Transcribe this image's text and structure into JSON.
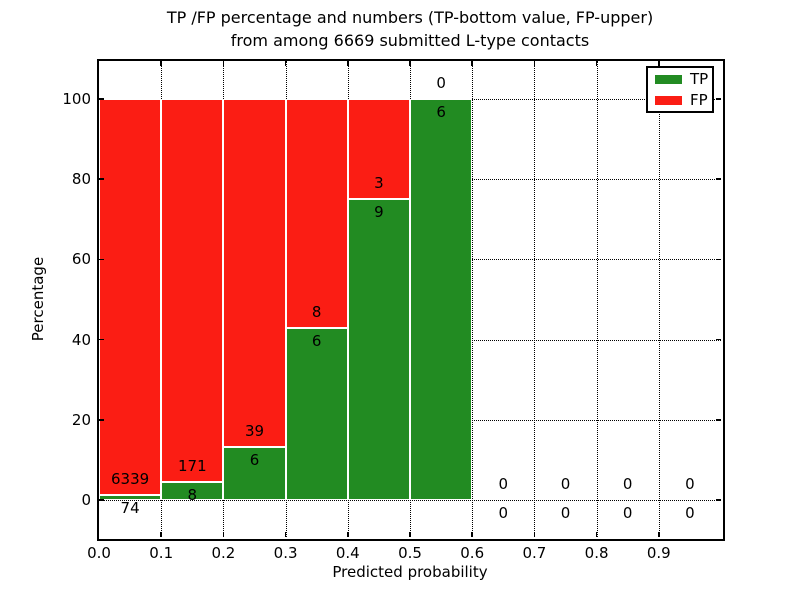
{
  "title": {
    "line1": "TP /FP percentage and numbers (TP-bottom value, FP-upper)",
    "line2": "from among 6669 submitted L-type contacts"
  },
  "axes": {
    "xlabel": "Predicted probability",
    "ylabel": "Percentage",
    "x_tick_labels": [
      "0.0",
      "0.1",
      "0.2",
      "0.3",
      "0.4",
      "0.5",
      "0.6",
      "0.7",
      "0.8",
      "0.9"
    ],
    "y_tick_labels": [
      "0",
      "20",
      "40",
      "60",
      "80",
      "100"
    ]
  },
  "legend": {
    "items": [
      {
        "label": "TP",
        "color": "#228b22"
      },
      {
        "label": "FP",
        "color": "#fb1d14"
      }
    ]
  },
  "colors": {
    "tp": "#228b22",
    "fp": "#fb1d14",
    "grid": "#000000",
    "bar_edge": "#ffffff",
    "frame": "#000000"
  },
  "chart_data": {
    "type": "bar",
    "stacked": true,
    "title": "TP /FP percentage and numbers (TP-bottom value, FP-upper) from among 6669 submitted L-type contacts",
    "xlabel": "Predicted probability",
    "ylabel": "Percentage",
    "xlim": [
      0.0,
      1.0
    ],
    "ylim": [
      -10,
      110
    ],
    "grid": true,
    "grid_style": "dotted",
    "legend_position": "upper right",
    "bin_width": 0.1,
    "total_contacts": 6669,
    "series": [
      {
        "name": "TP",
        "color": "#228b22",
        "position": "bottom"
      },
      {
        "name": "FP",
        "color": "#fb1d14",
        "position": "top"
      }
    ],
    "bins": [
      {
        "x0": 0.0,
        "x1": 0.1,
        "tp_count": 74,
        "fp_count": 6339,
        "tp_pct": 1.15,
        "fp_pct": 98.85
      },
      {
        "x0": 0.1,
        "x1": 0.2,
        "tp_count": 8,
        "fp_count": 171,
        "tp_pct": 4.47,
        "fp_pct": 95.53
      },
      {
        "x0": 0.2,
        "x1": 0.3,
        "tp_count": 6,
        "fp_count": 39,
        "tp_pct": 13.33,
        "fp_pct": 86.67
      },
      {
        "x0": 0.3,
        "x1": 0.4,
        "tp_count": 6,
        "fp_count": 8,
        "tp_pct": 42.86,
        "fp_pct": 57.14
      },
      {
        "x0": 0.4,
        "x1": 0.5,
        "tp_count": 9,
        "fp_count": 3,
        "tp_pct": 75.0,
        "fp_pct": 25.0
      },
      {
        "x0": 0.5,
        "x1": 0.6,
        "tp_count": 6,
        "fp_count": 0,
        "tp_pct": 100.0,
        "fp_pct": 0.0
      },
      {
        "x0": 0.6,
        "x1": 0.7,
        "tp_count": 0,
        "fp_count": 0,
        "tp_pct": null,
        "fp_pct": null
      },
      {
        "x0": 0.7,
        "x1": 0.8,
        "tp_count": 0,
        "fp_count": 0,
        "tp_pct": null,
        "fp_pct": null
      },
      {
        "x0": 0.8,
        "x1": 0.9,
        "tp_count": 0,
        "fp_count": 0,
        "tp_pct": null,
        "fp_pct": null
      },
      {
        "x0": 0.9,
        "x1": 1.0,
        "tp_count": 0,
        "fp_count": 0,
        "tp_pct": null,
        "fp_pct": null
      }
    ]
  }
}
